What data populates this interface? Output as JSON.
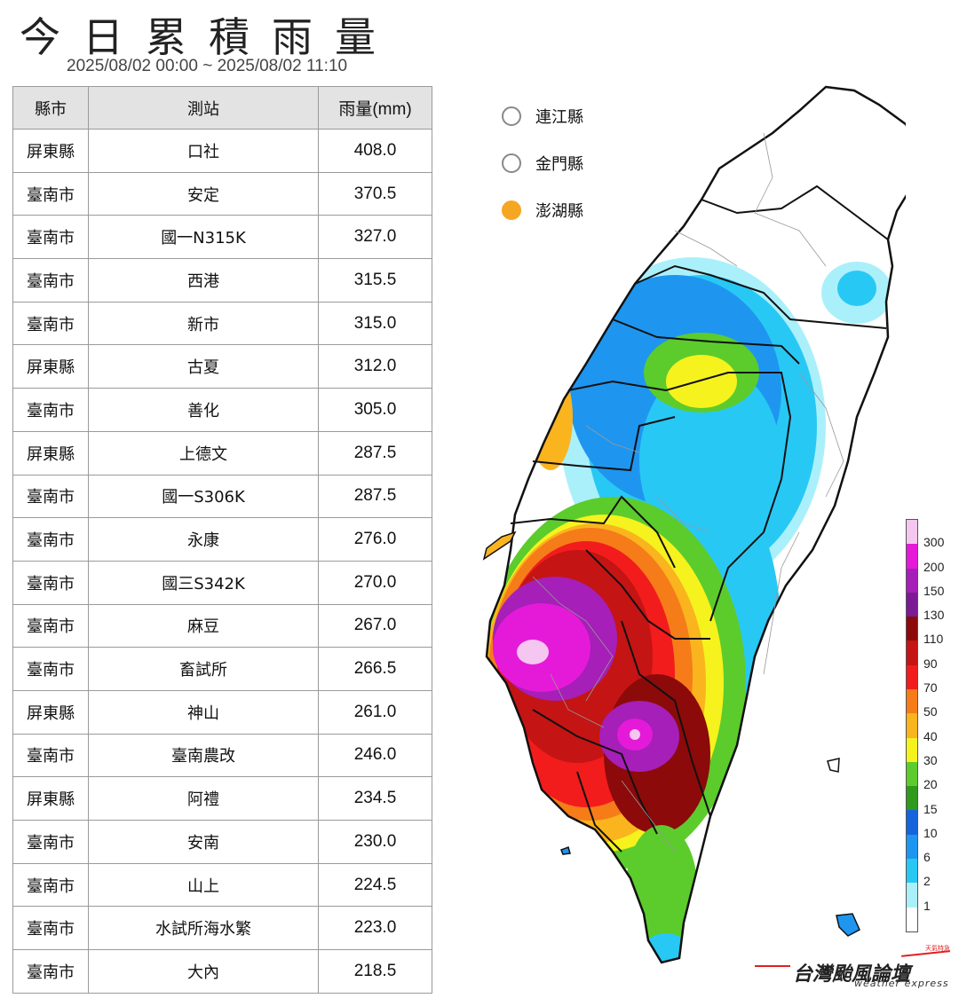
{
  "title": "今日累積雨量",
  "subtitle": "2025/08/02 00:00 ~ 2025/08/02 11:10",
  "table": {
    "headers": [
      "縣市",
      "測站",
      "雨量(mm)"
    ],
    "rows": [
      [
        "屏東縣",
        "口社",
        "408.0"
      ],
      [
        "臺南市",
        "安定",
        "370.5"
      ],
      [
        "臺南市",
        "國一N315K",
        "327.0"
      ],
      [
        "臺南市",
        "西港",
        "315.5"
      ],
      [
        "臺南市",
        "新市",
        "315.0"
      ],
      [
        "屏東縣",
        "古夏",
        "312.0"
      ],
      [
        "臺南市",
        "善化",
        "305.0"
      ],
      [
        "屏東縣",
        "上德文",
        "287.5"
      ],
      [
        "臺南市",
        "國一S306K",
        "287.5"
      ],
      [
        "臺南市",
        "永康",
        "276.0"
      ],
      [
        "臺南市",
        "國三S342K",
        "270.0"
      ],
      [
        "臺南市",
        "麻豆",
        "267.0"
      ],
      [
        "臺南市",
        "畜試所",
        "266.5"
      ],
      [
        "屏東縣",
        "神山",
        "261.0"
      ],
      [
        "臺南市",
        "臺南農改",
        "246.0"
      ],
      [
        "屏東縣",
        "阿禮",
        "234.5"
      ],
      [
        "臺南市",
        "安南",
        "230.0"
      ],
      [
        "臺南市",
        "山上",
        "224.5"
      ],
      [
        "臺南市",
        "水試所海水繁",
        "223.0"
      ],
      [
        "臺南市",
        "大內",
        "218.5"
      ]
    ]
  },
  "outlying_islands": [
    {
      "name": "連江縣",
      "color": "#ffffff"
    },
    {
      "name": "金門縣",
      "color": "#ffffff"
    },
    {
      "name": "澎湖縣",
      "color": "#f5a623"
    }
  ],
  "scale": {
    "labels": [
      "300",
      "200",
      "150",
      "130",
      "110",
      "90",
      "70",
      "50",
      "40",
      "30",
      "20",
      "15",
      "10",
      "6",
      "2",
      "1"
    ],
    "colors": [
      "#f4c6f0",
      "#e51ad8",
      "#a51fb8",
      "#7c1a95",
      "#8c0a0a",
      "#c41414",
      "#f21c1c",
      "#f57c18",
      "#fab41e",
      "#f6f21e",
      "#5ccc2c",
      "#2f9a1c",
      "#1464dc",
      "#1e96f0",
      "#28c8f5",
      "#aaf0fa",
      "#ffffff"
    ]
  },
  "brand": {
    "name": "台灣颱風論壇",
    "sub": "weather express",
    "tag": "天氣特急"
  }
}
